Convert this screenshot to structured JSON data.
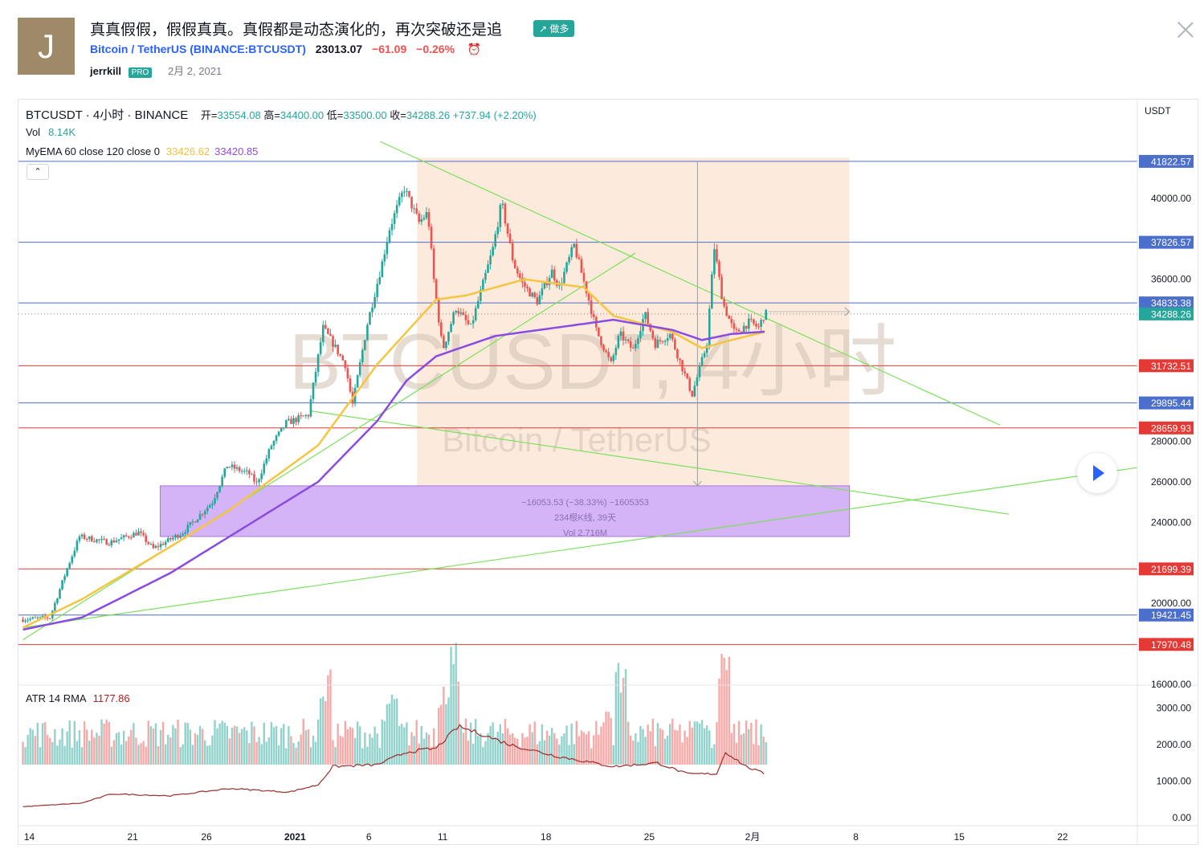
{
  "idea": {
    "avatar_letter": "J",
    "title": "真真假假，假假真真。真假都是动态演化的，再次突破还是追",
    "badge": "↗ 做多",
    "symbol_link": "Bitcoin / TetherUS",
    "symbol_code": "(BINANCE:BTCUSDT)",
    "price": "23013.07",
    "change": "−61.09",
    "change_pct": "−0.26%",
    "author": "jerrkill",
    "author_badge": "PRO",
    "date": "2月 2, 2021"
  },
  "legend": {
    "title": "BTCUSDT · 4小时 · BINANCE",
    "open_label": "开=",
    "open": "33554.08",
    "high_label": "高=",
    "high": "34400.00",
    "low_label": "低=",
    "low": "33500.00",
    "close_label": "收=",
    "close": "34288.26",
    "change": "+737.94 (+2.20%)",
    "vol_label": "Vol",
    "vol": "8.14K",
    "ema_label": "MyEMA 60 close 120 close 0",
    "ema1": "33426.62",
    "ema2": "33420.85",
    "atr_label": "ATR 14 RMA",
    "atr": "1177.86",
    "collapse": "⌃"
  },
  "chart_data": {
    "type": "candlestick",
    "currency": "USDT",
    "watermark": "BTCUSDT, 4小时",
    "watermark_sub": "Bitcoin / TetherUS",
    "x_labels": [
      {
        "t": 0,
        "label": "14"
      },
      {
        "t": 7,
        "label": "21"
      },
      {
        "t": 12,
        "label": "26"
      },
      {
        "t": 18,
        "label": "2021"
      },
      {
        "t": 23,
        "label": "6"
      },
      {
        "t": 28,
        "label": "11"
      },
      {
        "t": 35,
        "label": "18"
      },
      {
        "t": 42,
        "label": "25"
      },
      {
        "t": 49,
        "label": "2月"
      },
      {
        "t": 56,
        "label": "8"
      },
      {
        "t": 63,
        "label": "15"
      },
      {
        "t": 70,
        "label": "22"
      }
    ],
    "x_range_days": [
      -0.3,
      75.5
    ],
    "price_range": [
      16000,
      44000
    ],
    "price_ticks": [
      16000,
      18000,
      20000,
      22000,
      24000,
      26000,
      28000,
      30000,
      32000,
      34000,
      36000,
      38000,
      40000,
      42000
    ],
    "hidden_price_ticks": [
      22000,
      30000,
      32000,
      34000,
      38000,
      42000,
      44000
    ],
    "price_path": [
      [
        0,
        19200
      ],
      [
        2,
        19300
      ],
      [
        3.2,
        21800
      ],
      [
        4,
        23300
      ],
      [
        6,
        23000
      ],
      [
        8,
        23500
      ],
      [
        9,
        22700
      ],
      [
        11,
        23500
      ],
      [
        13,
        25000
      ],
      [
        14,
        26800
      ],
      [
        15.5,
        26400
      ],
      [
        16,
        25900
      ],
      [
        17,
        27800
      ],
      [
        18,
        28900
      ],
      [
        19.5,
        29300
      ],
      [
        20.5,
        33600
      ],
      [
        21.2,
        32800
      ],
      [
        22,
        31800
      ],
      [
        22.5,
        29800
      ],
      [
        23.5,
        33800
      ],
      [
        24.5,
        36800
      ],
      [
        25,
        38500
      ],
      [
        26,
        40500
      ],
      [
        27,
        38800
      ],
      [
        27.6,
        39300
      ],
      [
        28,
        36000
      ],
      [
        28.6,
        32500
      ],
      [
        29.5,
        34600
      ],
      [
        30.5,
        33600
      ],
      [
        32,
        37500
      ],
      [
        32.6,
        39800
      ],
      [
        33.4,
        36800
      ],
      [
        34,
        35800
      ],
      [
        35,
        34900
      ],
      [
        36,
        36400
      ],
      [
        36.5,
        35600
      ],
      [
        37.5,
        37700
      ],
      [
        38.5,
        35000
      ],
      [
        39,
        33500
      ],
      [
        40,
        31800
      ],
      [
        40.6,
        33300
      ],
      [
        41.5,
        32500
      ],
      [
        42.3,
        34300
      ],
      [
        43,
        32800
      ],
      [
        44,
        33300
      ],
      [
        45,
        31300
      ],
      [
        45.5,
        30300
      ],
      [
        46.5,
        32800
      ],
      [
        47,
        37600
      ],
      [
        47.6,
        34800
      ],
      [
        48.4,
        33300
      ],
      [
        49.4,
        33900
      ],
      [
        50,
        33600
      ],
      [
        50.4,
        34288
      ]
    ],
    "ema60": [
      [
        0,
        18800
      ],
      [
        4,
        20200
      ],
      [
        10,
        22800
      ],
      [
        14,
        24600
      ],
      [
        20,
        27800
      ],
      [
        24,
        31800
      ],
      [
        28,
        35000
      ],
      [
        30,
        35200
      ],
      [
        34,
        36000
      ],
      [
        38,
        35600
      ],
      [
        40,
        34200
      ],
      [
        44,
        33400
      ],
      [
        46,
        32600
      ],
      [
        48,
        33000
      ],
      [
        50.4,
        33427
      ]
    ],
    "ema120": [
      [
        0,
        18700
      ],
      [
        4,
        19300
      ],
      [
        10,
        21500
      ],
      [
        14,
        23300
      ],
      [
        20,
        26000
      ],
      [
        24,
        29000
      ],
      [
        26,
        31000
      ],
      [
        28,
        32200
      ],
      [
        32,
        33200
      ],
      [
        36,
        33600
      ],
      [
        40,
        34000
      ],
      [
        44,
        33500
      ],
      [
        46,
        33000
      ],
      [
        48,
        33300
      ],
      [
        50.4,
        33421
      ]
    ],
    "atr_range": [
      0,
      3500
    ],
    "atr_ticks": [
      0,
      1000,
      2000,
      3000
    ],
    "atr_tick_labels": [
      "0.00",
      "1000.00",
      "2000.00",
      "3000.00"
    ],
    "atr": [
      [
        0,
        300
      ],
      [
        4,
        400
      ],
      [
        6,
        650
      ],
      [
        10,
        600
      ],
      [
        14,
        800
      ],
      [
        18,
        700
      ],
      [
        20,
        900
      ],
      [
        21,
        1400
      ],
      [
        24,
        1450
      ],
      [
        26,
        1800
      ],
      [
        28,
        1900
      ],
      [
        29.5,
        2500
      ],
      [
        31,
        2300
      ],
      [
        33,
        2000
      ],
      [
        36,
        1700
      ],
      [
        40,
        1400
      ],
      [
        43,
        1500
      ],
      [
        45,
        1200
      ],
      [
        47,
        1200
      ],
      [
        47.6,
        1800
      ],
      [
        49,
        1400
      ],
      [
        50.4,
        1178
      ]
    ],
    "h_lines": [
      {
        "price": 41822.57,
        "color": "#4c6fcc",
        "label": "41822.57"
      },
      {
        "price": 37826.57,
        "color": "#4c6fcc",
        "label": "37826.57"
      },
      {
        "price": 34833.38,
        "color": "#4c6fcc",
        "label": "34833.38"
      },
      {
        "price": 31732.51,
        "color": "#e53935",
        "label": "31732.51"
      },
      {
        "price": 29895.44,
        "color": "#4c6fcc",
        "label": "29895.44"
      },
      {
        "price": 28659.93,
        "color": "#e53935",
        "label": "28659.93"
      },
      {
        "price": 21699.39,
        "color": "#e53935",
        "label": "21699.39"
      },
      {
        "price": 19421.45,
        "color": "#4c6fcc",
        "label": "19421.45"
      },
      {
        "price": 17970.48,
        "color": "#e53935",
        "label": "17970.48"
      }
    ],
    "last_price": {
      "price": 34288.26,
      "label": "34288.26",
      "color": "#26a69a"
    },
    "trend_lines": [
      [
        [
          24.2,
          42800
        ],
        [
          66.2,
          28800
        ]
      ],
      [
        [
          19.5,
          29500
        ],
        [
          66.8,
          24400
        ]
      ],
      [
        [
          0,
          18200
        ],
        [
          41.5,
          37300
        ]
      ],
      [
        [
          0,
          18800
        ],
        [
          75.5,
          26700
        ]
      ]
    ],
    "measure_box": {
      "t1": 26.7,
      "t2": 56,
      "p1": 25800,
      "p2": 42000
    },
    "measure_zone": {
      "t1": 9.3,
      "t2": 56,
      "p1": 23300,
      "p2": 25800
    },
    "measure_line": {
      "t": 45.7,
      "p1": 41800,
      "p2": 25800
    },
    "measure_text": [
      "−16053.53 (−38.33%) −1605353",
      "234根K线, 39天",
      "Vol 2.716M"
    ],
    "volume_spikes": [
      [
        47.5,
        0.95
      ],
      [
        46,
        0.35
      ],
      [
        29.3,
        0.9
      ],
      [
        28.5,
        0.65
      ],
      [
        40.5,
        0.75
      ],
      [
        39.6,
        0.5
      ],
      [
        20.5,
        0.7
      ],
      [
        25,
        0.55
      ]
    ],
    "colors": {
      "up": "#26a69a",
      "down": "#ef5350",
      "ema60": "#f5c542",
      "ema120": "#8a4be0",
      "atr": "#9b2c2c",
      "trend": "#7be05a"
    }
  }
}
